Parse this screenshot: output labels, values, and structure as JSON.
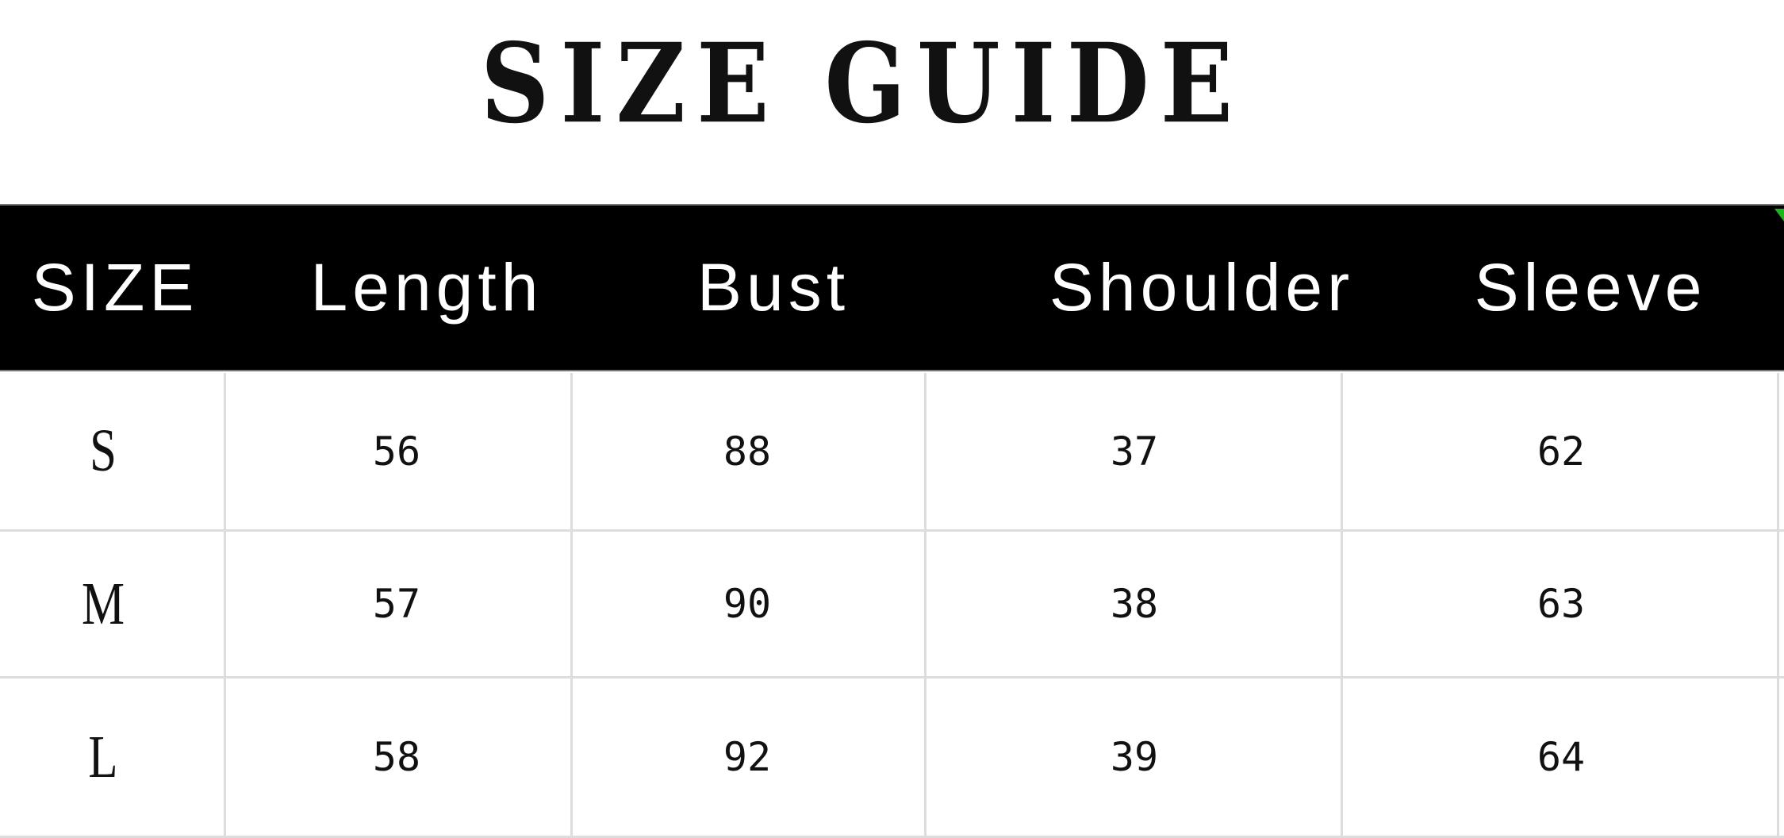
{
  "title": "SIZE GUIDE",
  "table": {
    "headers": [
      "SIZE",
      "Length",
      "Bust",
      "Shoulder",
      "Sleeve"
    ],
    "rows": [
      {
        "size": "S",
        "values": [
          "56",
          "88",
          "37",
          "62"
        ]
      },
      {
        "size": "M",
        "values": [
          "57",
          "90",
          "38",
          "63"
        ]
      },
      {
        "size": "L",
        "values": [
          "58",
          "92",
          "39",
          "64"
        ]
      }
    ]
  },
  "colors": {
    "header_bg": "#000000",
    "header_text": "#ffffff",
    "grid": "#dddddd",
    "corner_mark": "#1db41d"
  }
}
